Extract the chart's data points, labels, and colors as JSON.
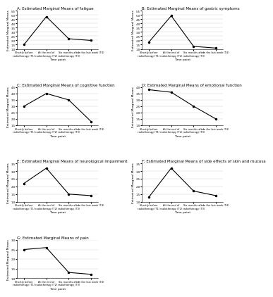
{
  "x_labels": [
    "Shortly before\nradiotherapy (T1)",
    "At the end of\nradiotherapy (T2)",
    "Six months after\nradiotherapy (T3)",
    "In the last week (T4)"
  ],
  "plots": [
    {
      "title": "A: Estimated Marginal Means of fatigue",
      "ylabel": "Estimated Marginal Means",
      "xlabel": "Time point",
      "y_values": [
        1.5,
        4.8,
        2.2,
        2.0
      ],
      "ylim": [
        1.0,
        5.5
      ],
      "yticks": [
        1.0,
        1.5,
        2.0,
        2.5,
        3.0,
        3.5,
        4.0,
        4.5,
        5.0,
        5.5
      ]
    },
    {
      "title": "B: Estimated Marginal Means of gastric symptoms",
      "ylabel": "Estimated Marginal Means",
      "xlabel": "Time point",
      "y_values": [
        1.8,
        4.9,
        1.3,
        1.1
      ],
      "ylim": [
        1.0,
        5.5
      ],
      "yticks": [
        1.0,
        1.5,
        2.0,
        2.5,
        3.0,
        3.5,
        4.0,
        4.5,
        5.0,
        5.5
      ]
    },
    {
      "title": "C: Estimated Marginal Means of cognitive function",
      "ylabel": "Estimated Marginal Means",
      "xlabel": "Time point",
      "y_values": [
        3.0,
        4.0,
        3.5,
        1.8
      ],
      "ylim": [
        1.5,
        4.5
      ],
      "yticks": [
        1.5,
        2.0,
        2.5,
        3.0,
        3.5,
        4.0,
        4.5
      ]
    },
    {
      "title": "D: Estimated Marginal Means of emotional function",
      "ylabel": "Estimated Marginal Means",
      "xlabel": "Time point",
      "y_values": [
        3.8,
        3.6,
        2.5,
        1.5
      ],
      "ylim": [
        1.0,
        4.0
      ],
      "yticks": [
        1.0,
        1.5,
        2.0,
        2.5,
        3.0,
        3.5,
        4.0
      ]
    },
    {
      "title": "E: Estimated Marginal Means of neurological impairment",
      "ylabel": "Estimated Marginal Means",
      "xlabel": "Time point",
      "y_values": [
        2.2,
        3.2,
        1.5,
        1.4
      ],
      "ylim": [
        1.0,
        3.5
      ],
      "yticks": [
        1.0,
        1.5,
        2.0,
        2.5,
        3.0,
        3.5
      ]
    },
    {
      "title": "F: Estimated Marginal Means of side effects of skin and mucosa",
      "ylabel": "Estimated Marginal Means",
      "xlabel": "Time point",
      "y_values": [
        1.3,
        3.2,
        1.7,
        1.4
      ],
      "ylim": [
        1.0,
        3.5
      ],
      "yticks": [
        1.0,
        1.5,
        2.0,
        2.5,
        3.0,
        3.5
      ]
    },
    {
      "title": "G: Estimated Marginal Means of pain",
      "ylabel": "Estimated Marginal Means",
      "xlabel": "Time point",
      "y_values": [
        2.5,
        2.6,
        1.3,
        1.2
      ],
      "ylim": [
        1.0,
        3.0
      ],
      "yticks": [
        1.0,
        1.5,
        2.0,
        2.5,
        3.0
      ]
    }
  ],
  "line_color": "#000000",
  "line_width": 0.8,
  "marker": "o",
  "marker_size": 1.5,
  "title_fontsize": 4.0,
  "label_fontsize": 3.2,
  "tick_fontsize": 2.8,
  "xtick_fontsize": 2.5,
  "grid_color": "#cccccc",
  "grid_linewidth": 0.3,
  "bg_color": "#ffffff"
}
